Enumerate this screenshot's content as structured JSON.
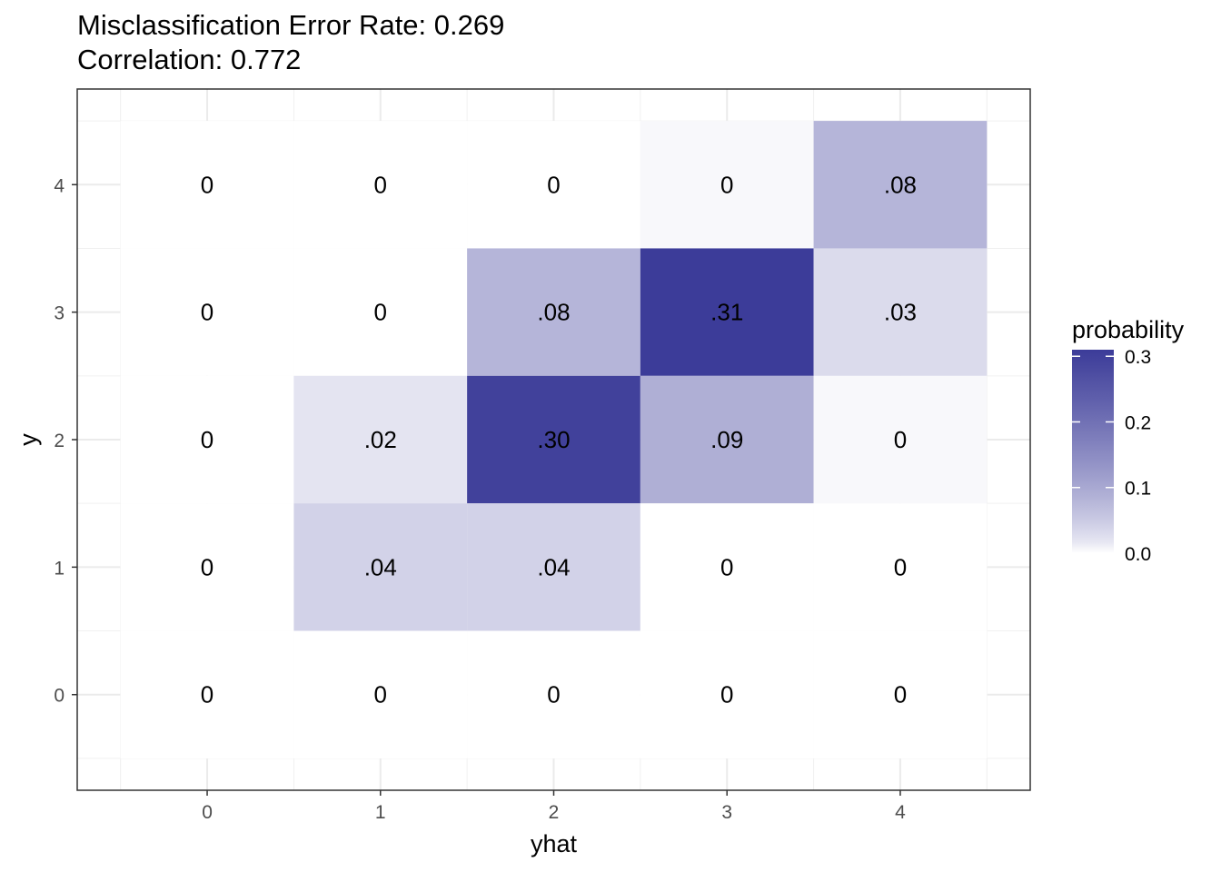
{
  "title_line1": "Misclassification Error Rate: 0.269",
  "title_line2": "Correlation: 0.772",
  "chart_data": {
    "type": "heatmap",
    "xlabel": "yhat",
    "ylabel": "y",
    "x_categories": [
      "0",
      "1",
      "2",
      "3",
      "4"
    ],
    "y_categories": [
      "0",
      "1",
      "2",
      "3",
      "4"
    ],
    "cells": [
      {
        "x": "0",
        "y": "4",
        "value": 0,
        "label": "0"
      },
      {
        "x": "1",
        "y": "4",
        "value": 0,
        "label": "0"
      },
      {
        "x": "2",
        "y": "4",
        "value": 0,
        "label": "0"
      },
      {
        "x": "3",
        "y": "4",
        "value": 0.003,
        "label": "0"
      },
      {
        "x": "4",
        "y": "4",
        "value": 0.08,
        "label": ".08"
      },
      {
        "x": "0",
        "y": "3",
        "value": 0,
        "label": "0"
      },
      {
        "x": "1",
        "y": "3",
        "value": 0,
        "label": "0"
      },
      {
        "x": "2",
        "y": "3",
        "value": 0.08,
        "label": ".08"
      },
      {
        "x": "3",
        "y": "3",
        "value": 0.31,
        "label": ".31"
      },
      {
        "x": "4",
        "y": "3",
        "value": 0.03,
        "label": ".03"
      },
      {
        "x": "0",
        "y": "2",
        "value": 0,
        "label": "0"
      },
      {
        "x": "1",
        "y": "2",
        "value": 0.02,
        "label": ".02"
      },
      {
        "x": "2",
        "y": "2",
        "value": 0.3,
        "label": ".30"
      },
      {
        "x": "3",
        "y": "2",
        "value": 0.09,
        "label": ".09"
      },
      {
        "x": "4",
        "y": "2",
        "value": 0.003,
        "label": "0"
      },
      {
        "x": "0",
        "y": "1",
        "value": 0,
        "label": "0"
      },
      {
        "x": "1",
        "y": "1",
        "value": 0.04,
        "label": ".04"
      },
      {
        "x": "2",
        "y": "1",
        "value": 0.04,
        "label": ".04"
      },
      {
        "x": "3",
        "y": "1",
        "value": 0,
        "label": "0"
      },
      {
        "x": "4",
        "y": "1",
        "value": 0,
        "label": "0"
      },
      {
        "x": "0",
        "y": "0",
        "value": 0,
        "label": "0"
      },
      {
        "x": "1",
        "y": "0",
        "value": 0,
        "label": "0"
      },
      {
        "x": "2",
        "y": "0",
        "value": 0,
        "label": "0"
      },
      {
        "x": "3",
        "y": "0",
        "value": 0,
        "label": "0"
      },
      {
        "x": "4",
        "y": "0",
        "value": 0,
        "label": "0"
      }
    ],
    "legend": {
      "title": "probability",
      "ticks": [
        0.0,
        0.1,
        0.2,
        0.3
      ],
      "tick_labels": [
        "0.0",
        "0.1",
        "0.2",
        "0.3"
      ],
      "min": 0,
      "max": 0.31,
      "low_color": "#ffffff",
      "high_color": "#3c3c99",
      "position": "right"
    },
    "grid": true
  }
}
